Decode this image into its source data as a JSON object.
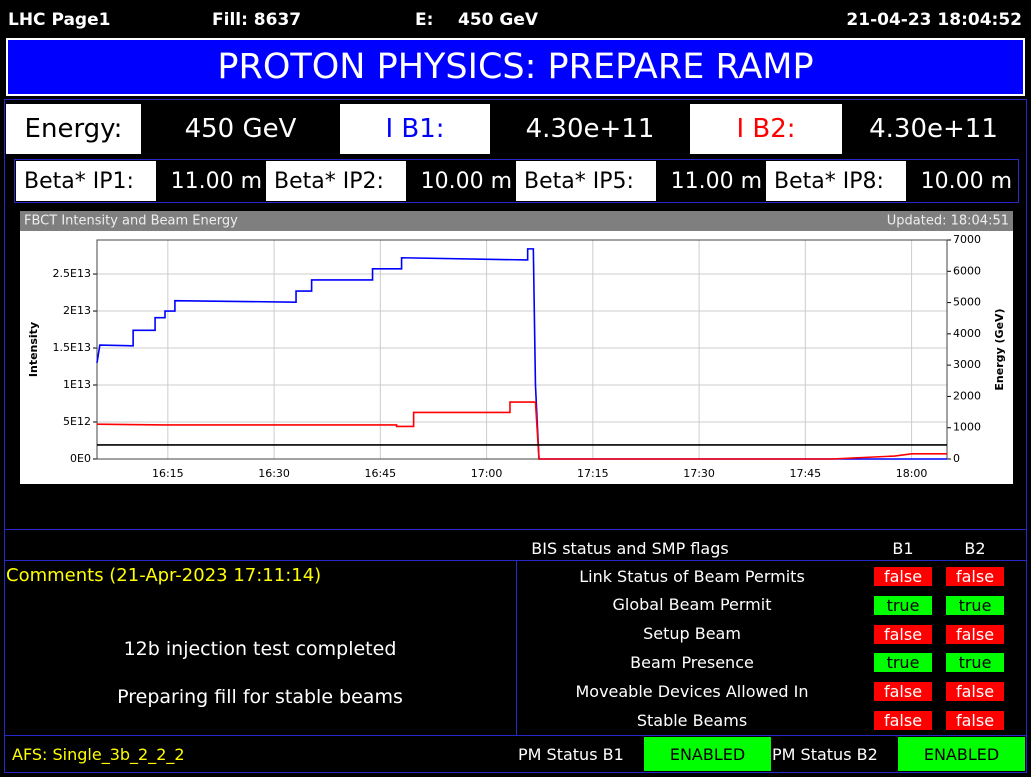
{
  "header": {
    "page": "LHC Page1",
    "fill": "Fill: 8637",
    "energy_label": "E:",
    "energy": "450 GeV",
    "timestamp": "21-04-23 18:04:52"
  },
  "banner": "PROTON PHYSICS: PREPARE RAMP",
  "summary": [
    {
      "label": "Energy:",
      "value": "450 GeV",
      "color": "#000000"
    },
    {
      "label": "I B1:",
      "value": "4.30e+11",
      "color": "#0000ff"
    },
    {
      "label": "I B2:",
      "value": "4.30e+11",
      "color": "#ff0000"
    }
  ],
  "beta_star": [
    {
      "label": "Beta* IP1:",
      "value": "11.00 m"
    },
    {
      "label": "Beta* IP2:",
      "value": "10.00 m"
    },
    {
      "label": "Beta* IP5:",
      "value": "11.00 m"
    },
    {
      "label": "Beta* IP8:",
      "value": "10.00 m"
    }
  ],
  "chart_data": {
    "type": "line",
    "title": "FBCT Intensity and Beam Energy",
    "subtitle": "Updated: 18:04:51",
    "ylabel": "Intensity",
    "y2label": "Energy (GeV)",
    "xlim": [
      965,
      1085
    ],
    "xticks": [
      {
        "value": 975,
        "label": "16:15"
      },
      {
        "value": 990,
        "label": "16:30"
      },
      {
        "value": 1005,
        "label": "16:45"
      },
      {
        "value": 1020,
        "label": "17:00"
      },
      {
        "value": 1035,
        "label": "17:15"
      },
      {
        "value": 1050,
        "label": "17:30"
      },
      {
        "value": 1065,
        "label": "17:45"
      },
      {
        "value": 1080,
        "label": "18:00"
      }
    ],
    "ylim": [
      0,
      29600000000000.0
    ],
    "yticks": [
      {
        "value": 0,
        "label": "0E0"
      },
      {
        "value": 5000000000000.0,
        "label": "5E12"
      },
      {
        "value": 10000000000000.0,
        "label": "1E13"
      },
      {
        "value": 15000000000000.0,
        "label": "1.5E13"
      },
      {
        "value": 20000000000000.0,
        "label": "2E13"
      },
      {
        "value": 25000000000000.0,
        "label": "2.5E13"
      }
    ],
    "y2lim": [
      0,
      7000
    ],
    "y2ticks": [
      0,
      1000,
      2000,
      3000,
      4000,
      5000,
      6000,
      7000
    ],
    "grid": true,
    "series": [
      {
        "color": "#0000ff",
        "x": [
          965,
          965.4,
          970.1,
          970.1,
          973.2,
          973.2,
          974.6,
          974.6,
          976,
          976,
          993.1,
          993.1,
          995.3,
          995.3,
          1003.9,
          1003.9,
          1008,
          1008,
          1025.8,
          1025.8,
          1026.6,
          1026.9,
          1027.4,
          1085
        ],
        "values": [
          13000000000000.0,
          15400000000000.0,
          15300000000000.0,
          17400000000000.0,
          17400000000000.0,
          19100000000000.0,
          19100000000000.0,
          20000000000000.0,
          20000000000000.0,
          21400000000000.0,
          21200000000000.0,
          22700000000000.0,
          22700000000000.0,
          24200000000000.0,
          24200000000000.0,
          25700000000000.0,
          25700000000000.0,
          27200000000000.0,
          26900000000000.0,
          28400000000000.0,
          28400000000000.0,
          10000000000000.0,
          0,
          0
        ]
      },
      {
        "color": "#ff0000",
        "x": [
          965,
          974.6,
          1007.3,
          1007.3,
          1009.7,
          1009.7,
          1023.3,
          1023.3,
          1026.9,
          1027.4,
          1068.7,
          1077.6,
          1080,
          1085
        ],
        "values": [
          4700000000000.0,
          4600000000000.0,
          4600000000000.0,
          4400000000000.0,
          4400000000000.0,
          6300000000000.0,
          6300000000000.0,
          7700000000000.0,
          7700000000000.0,
          0,
          0,
          400000000000.0,
          700000000000.0,
          700000000000.0
        ]
      },
      {
        "color": "#000000",
        "axis": "y2",
        "x": [
          965,
          1085
        ],
        "values": [
          450,
          450
        ]
      }
    ]
  },
  "comments": {
    "title": "Comments (21-Apr-2023 17:11:14)",
    "lines": [
      "12b injection test completed",
      "Preparing fill for stable beams"
    ]
  },
  "flags": {
    "title": "BIS status and SMP flags",
    "columns": [
      "B1",
      "B2"
    ],
    "rows": [
      {
        "label": "Link Status of Beam Permits",
        "values": [
          "false",
          "false"
        ]
      },
      {
        "label": "Global Beam Permit",
        "values": [
          "true",
          "true"
        ]
      },
      {
        "label": "Setup Beam",
        "values": [
          "false",
          "false"
        ]
      },
      {
        "label": "Beam Presence",
        "values": [
          "true",
          "true"
        ]
      },
      {
        "label": "Moveable Devices Allowed In",
        "values": [
          "false",
          "false"
        ]
      },
      {
        "label": "Stable Beams",
        "values": [
          "false",
          "false"
        ]
      }
    ]
  },
  "footer": {
    "afs": "AFS: Single_3b_2_2_2",
    "pm": [
      {
        "label": "PM Status B1",
        "status": "ENABLED"
      },
      {
        "label": "PM Status B2",
        "status": "ENABLED"
      }
    ]
  }
}
